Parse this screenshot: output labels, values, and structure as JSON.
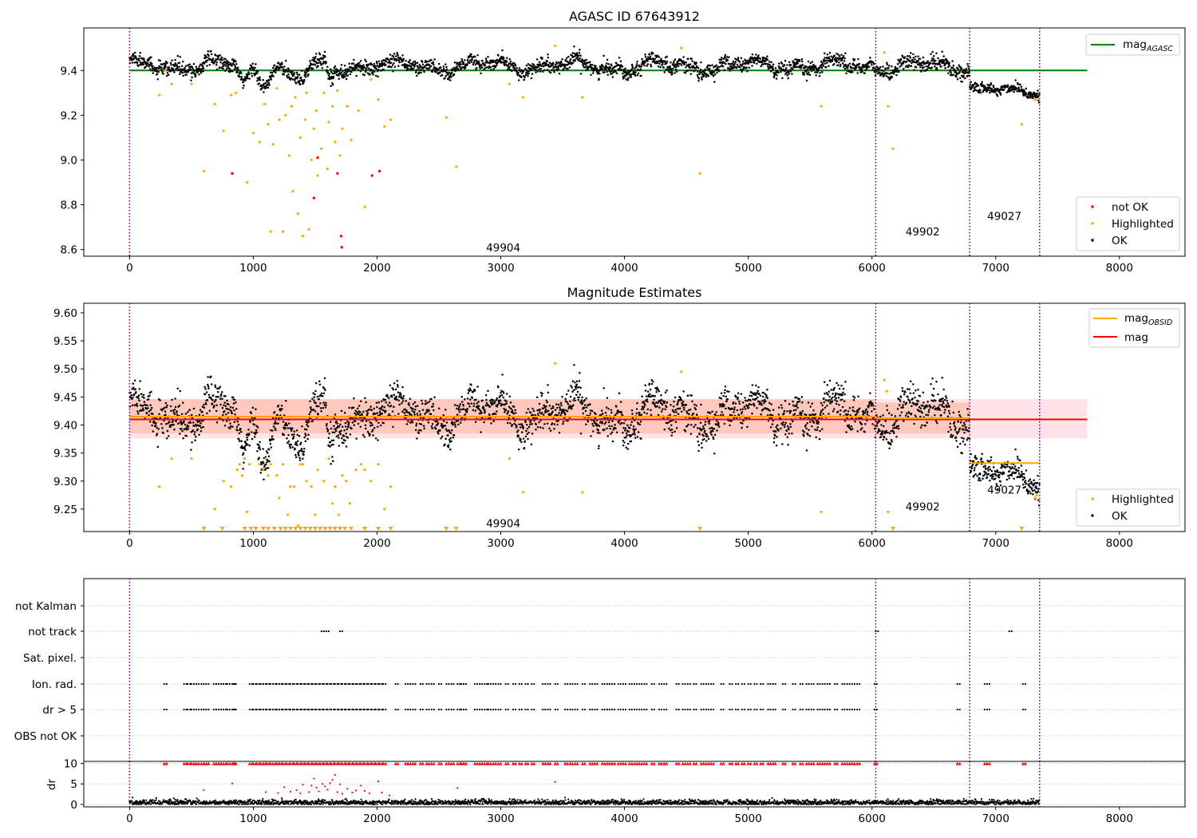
{
  "colors": {
    "ok": "#000000",
    "highlighted": "#ffa500",
    "not_ok": "#ff0000",
    "agasc_line": "#008000",
    "mag_line": "#ff0000",
    "obsid_line": "#ffa500",
    "obs_boundary": "#800080",
    "band_red": "#ffc0cb",
    "band_orange": "#ffa07a",
    "grid": "#b0b0b0"
  },
  "chart_data": [
    {
      "id": "top",
      "type": "scatter",
      "title": "AGASC ID 67643912",
      "xlim": [
        -370,
        8530
      ],
      "ylim": [
        8.57,
        9.59
      ],
      "xticks": [
        0,
        1000,
        2000,
        3000,
        4000,
        5000,
        6000,
        7000,
        8000
      ],
      "yticks": [
        8.6,
        8.8,
        9.0,
        9.2,
        9.4
      ],
      "ytick_labels": [
        "8.6",
        "8.8",
        "9.0",
        "9.2",
        "9.4"
      ],
      "obs_boundaries": [
        0,
        6030,
        6790,
        7355
      ],
      "obsid_labels": [
        {
          "text": "49904",
          "x": 3020,
          "y": 8.61
        },
        {
          "text": "49902",
          "x": 6410,
          "y": 8.68
        },
        {
          "text": "49027",
          "x": 7070,
          "y": 8.75
        }
      ],
      "hlines": [
        {
          "name": "mag_AGASC",
          "y": 9.4,
          "x0": 0,
          "x1": 7740,
          "color": "agasc_line"
        }
      ],
      "segments": [
        {
          "x0": 0,
          "x1": 6790,
          "mean": 9.42,
          "wiggle": 0.025,
          "noise": 0.016
        },
        {
          "x0": 6790,
          "x1": 7355,
          "mean": 9.33,
          "wiggle": 0.015,
          "noise": 0.012,
          "trend": -0.04
        }
      ],
      "dips": [
        {
          "x0": 850,
          "x1": 1000,
          "depth": 0.07
        },
        {
          "x0": 1020,
          "x1": 1150,
          "depth": 0.07
        },
        {
          "x0": 1200,
          "x1": 1500,
          "depth": 0.06
        },
        {
          "x0": 1580,
          "x1": 1660,
          "depth": 0.05
        }
      ],
      "highlighted": [
        [
          240,
          9.29
        ],
        [
          290,
          9.4
        ],
        [
          340,
          9.34
        ],
        [
          500,
          9.34
        ],
        [
          600,
          8.95
        ],
        [
          690,
          9.25
        ],
        [
          760,
          9.13
        ],
        [
          820,
          9.29
        ],
        [
          860,
          9.3
        ],
        [
          950,
          8.9
        ],
        [
          1000,
          9.12
        ],
        [
          1050,
          9.08
        ],
        [
          1090,
          9.25
        ],
        [
          1120,
          9.16
        ],
        [
          1140,
          8.68
        ],
        [
          1160,
          9.07
        ],
        [
          1190,
          9.32
        ],
        [
          1210,
          9.18
        ],
        [
          1240,
          8.68
        ],
        [
          1260,
          9.2
        ],
        [
          1290,
          9.02
        ],
        [
          1310,
          9.24
        ],
        [
          1320,
          8.86
        ],
        [
          1340,
          9.28
        ],
        [
          1360,
          8.76
        ],
        [
          1380,
          9.1
        ],
        [
          1400,
          8.66
        ],
        [
          1420,
          9.18
        ],
        [
          1430,
          9.3
        ],
        [
          1450,
          8.69
        ],
        [
          1470,
          9.0
        ],
        [
          1490,
          9.14
        ],
        [
          1510,
          9.22
        ],
        [
          1520,
          8.93
        ],
        [
          1550,
          9.05
        ],
        [
          1570,
          9.3
        ],
        [
          1600,
          8.96
        ],
        [
          1610,
          9.17
        ],
        [
          1640,
          9.24
        ],
        [
          1660,
          9.08
        ],
        [
          1680,
          9.31
        ],
        [
          1700,
          9.02
        ],
        [
          1720,
          9.14
        ],
        [
          1760,
          9.24
        ],
        [
          1790,
          9.09
        ],
        [
          1850,
          9.22
        ],
        [
          1900,
          8.79
        ],
        [
          1950,
          9.36
        ],
        [
          2010,
          9.27
        ],
        [
          2060,
          9.15
        ],
        [
          2110,
          9.18
        ],
        [
          2560,
          9.19
        ],
        [
          2640,
          8.97
        ],
        [
          3070,
          9.34
        ],
        [
          3180,
          9.28
        ],
        [
          3440,
          9.51
        ],
        [
          3660,
          9.28
        ],
        [
          4460,
          9.5
        ],
        [
          4610,
          8.94
        ],
        [
          5590,
          9.24
        ],
        [
          6100,
          9.48
        ],
        [
          6130,
          9.24
        ],
        [
          6170,
          9.05
        ],
        [
          7210,
          9.16
        ],
        [
          7320,
          9.27
        ]
      ],
      "not_ok": [
        [
          830,
          8.94
        ],
        [
          1490,
          8.83
        ],
        [
          1520,
          9.01
        ],
        [
          1680,
          8.94
        ],
        [
          1710,
          8.66
        ],
        [
          1715,
          8.61
        ],
        [
          1960,
          8.93
        ],
        [
          2020,
          8.95
        ]
      ],
      "legend": {
        "position": "lower-right",
        "items": [
          "not OK",
          "Highlighted",
          "OK"
        ]
      },
      "legend_line": {
        "position": "upper-right",
        "base": "mag",
        "sub": "AGASC"
      }
    },
    {
      "id": "middle",
      "type": "scatter",
      "title": "Magnitude Estimates",
      "xlim": [
        -370,
        8530
      ],
      "ylim": [
        9.21,
        9.617
      ],
      "xticks": [
        0,
        1000,
        2000,
        3000,
        4000,
        5000,
        6000,
        7000,
        8000
      ],
      "yticks": [
        9.25,
        9.3,
        9.35,
        9.4,
        9.45,
        9.5,
        9.55,
        9.6
      ],
      "ytick_labels": [
        "9.25",
        "9.30",
        "9.35",
        "9.40",
        "9.45",
        "9.50",
        "9.55",
        "9.60"
      ],
      "obs_boundaries": [
        0,
        6030,
        6790,
        7355
      ],
      "obsid_labels": [
        {
          "text": "49904",
          "x": 3020,
          "y": 9.225
        },
        {
          "text": "49902",
          "x": 6410,
          "y": 9.255
        },
        {
          "text": "49027",
          "x": 7070,
          "y": 9.285
        }
      ],
      "mag": {
        "value": 9.41,
        "x0": 0,
        "x1": 7740,
        "band": [
          9.376,
          9.446
        ]
      },
      "obsid_means": [
        {
          "x0": 0,
          "x1": 6030,
          "value": 9.415,
          "band": [
            9.385,
            9.446
          ]
        },
        {
          "x0": 6030,
          "x1": 6790,
          "value": 9.412,
          "band": [
            9.385,
            9.44
          ]
        },
        {
          "x0": 6790,
          "x1": 7355,
          "value": 9.332
        }
      ],
      "segments": [
        {
          "x0": 0,
          "x1": 6790,
          "mean": 9.42,
          "wiggle": 0.025,
          "noise": 0.016
        },
        {
          "x0": 6790,
          "x1": 7355,
          "mean": 9.33,
          "wiggle": 0.015,
          "noise": 0.012,
          "trend": -0.04
        }
      ],
      "dips": [
        {
          "x0": 850,
          "x1": 1000,
          "depth": 0.07
        },
        {
          "x0": 1020,
          "x1": 1150,
          "depth": 0.07
        },
        {
          "x0": 1200,
          "x1": 1500,
          "depth": 0.06
        },
        {
          "x0": 1580,
          "x1": 1660,
          "depth": 0.05
        }
      ],
      "highlighted": [
        [
          240,
          9.29
        ],
        [
          340,
          9.34
        ],
        [
          500,
          9.34
        ],
        [
          690,
          9.25
        ],
        [
          760,
          9.3
        ],
        [
          820,
          9.29
        ],
        [
          870,
          9.32
        ],
        [
          890,
          9.33
        ],
        [
          910,
          9.31
        ],
        [
          930,
          9.34
        ],
        [
          950,
          9.245
        ],
        [
          970,
          9.33
        ],
        [
          1050,
          9.33
        ],
        [
          1080,
          9.32
        ],
        [
          1100,
          9.34
        ],
        [
          1120,
          9.31
        ],
        [
          1140,
          9.33
        ],
        [
          1190,
          9.31
        ],
        [
          1210,
          9.27
        ],
        [
          1240,
          9.33
        ],
        [
          1280,
          9.24
        ],
        [
          1300,
          9.29
        ],
        [
          1330,
          9.29
        ],
        [
          1360,
          9.22
        ],
        [
          1380,
          9.33
        ],
        [
          1400,
          9.33
        ],
        [
          1430,
          9.3
        ],
        [
          1470,
          9.29
        ],
        [
          1500,
          9.24
        ],
        [
          1520,
          9.32
        ],
        [
          1570,
          9.3
        ],
        [
          1610,
          9.34
        ],
        [
          1640,
          9.26
        ],
        [
          1660,
          9.29
        ],
        [
          1690,
          9.24
        ],
        [
          1720,
          9.31
        ],
        [
          1750,
          9.3
        ],
        [
          1780,
          9.26
        ],
        [
          1830,
          9.32
        ],
        [
          1870,
          9.33
        ],
        [
          1900,
          9.32
        ],
        [
          1950,
          9.3
        ],
        [
          2010,
          9.33
        ],
        [
          2060,
          9.25
        ],
        [
          2110,
          9.29
        ],
        [
          3070,
          9.34
        ],
        [
          3180,
          9.28
        ],
        [
          3440,
          9.51
        ],
        [
          3660,
          9.28
        ],
        [
          4460,
          9.495
        ],
        [
          5590,
          9.245
        ],
        [
          6100,
          9.48
        ],
        [
          6120,
          9.46
        ],
        [
          6130,
          9.245
        ],
        [
          7320,
          9.27
        ],
        [
          7330,
          9.275
        ]
      ],
      "floor_x": [
        600,
        750,
        930,
        980,
        1020,
        1080,
        1120,
        1170,
        1220,
        1260,
        1300,
        1340,
        1380,
        1420,
        1460,
        1500,
        1540,
        1580,
        1620,
        1660,
        1700,
        1740,
        1790,
        1900,
        2010,
        2110,
        2560,
        2640,
        4610,
        6170,
        7210
      ],
      "legend": {
        "position": "lower-right",
        "items": [
          "Highlighted",
          "OK"
        ]
      },
      "legend_lines": {
        "position": "upper-right",
        "items": [
          {
            "base": "mag",
            "sub": "OBSID",
            "color": "obsid_line"
          },
          {
            "base": "mag",
            "sub": "",
            "color": "mag_line"
          }
        ]
      }
    },
    {
      "id": "flags",
      "type": "scatter",
      "xlim": [
        -370,
        8530
      ],
      "categories": [
        "not Kalman",
        "not track",
        "Sat. pixel.",
        "Ion. rad.",
        "dr > 5",
        "OBS not OK"
      ],
      "obs_boundaries": [
        0,
        6030,
        6790,
        7355
      ],
      "not_track": [
        1550,
        1570,
        1590,
        1700,
        6030,
        7110
      ],
      "ion_rad": [
        280,
        440,
        470,
        500,
        520,
        540,
        580,
        600,
        620,
        680,
        700,
        720,
        740,
        760,
        790,
        830,
        840,
        970,
        1000,
        1030,
        1060,
        1080,
        1110,
        1140,
        1160,
        1190,
        1210,
        1240,
        1270,
        1300,
        1330,
        1360,
        1390,
        1420,
        1450,
        1480,
        1510,
        1540,
        1570,
        1600,
        1630,
        1660,
        1690,
        1720,
        1750,
        1780,
        1810,
        1840,
        1870,
        1900,
        1930,
        1960,
        1990,
        2020,
        2050,
        2150,
        2230,
        2250,
        2290,
        2350,
        2400,
        2440,
        2500,
        2560,
        2600,
        2650,
        2680,
        2700,
        2790,
        2830,
        2870,
        2900,
        2940,
        2980,
        3040,
        3100,
        3150,
        3200,
        3250,
        3340,
        3380,
        3440,
        3520,
        3560,
        3600,
        3660,
        3720,
        3760,
        3820,
        3860,
        3900,
        3950,
        3990,
        4040,
        4080,
        4120,
        4160,
        4220,
        4280,
        4320,
        4420,
        4470,
        4510,
        4560,
        4620,
        4660,
        4700,
        4780,
        4850,
        4900,
        4950,
        5000,
        5050,
        5100,
        5160,
        5200,
        5280,
        5360,
        5420,
        5470,
        5510,
        5560,
        5600,
        5640,
        5700,
        5760,
        5800,
        5840,
        5880,
        6020,
        6690,
        6910,
        6930,
        7220
      ],
      "dr_gt5": [
        280,
        440,
        470,
        500,
        520,
        540,
        580,
        600,
        620,
        680,
        700,
        720,
        740,
        760,
        790,
        830,
        840,
        970,
        1000,
        1030,
        1060,
        1080,
        1110,
        1140,
        1160,
        1190,
        1210,
        1240,
        1270,
        1300,
        1330,
        1360,
        1390,
        1420,
        1450,
        1480,
        1510,
        1540,
        1570,
        1600,
        1630,
        1660,
        1690,
        1720,
        1750,
        1780,
        1810,
        1840,
        1870,
        1900,
        1930,
        1960,
        1990,
        2020,
        2050,
        2150,
        2230,
        2250,
        2290,
        2350,
        2400,
        2440,
        2500,
        2560,
        2600,
        2650,
        2680,
        2700,
        2790,
        2830,
        2870,
        2900,
        2940,
        2980,
        3040,
        3100,
        3150,
        3200,
        3250,
        3340,
        3380,
        3440,
        3520,
        3560,
        3600,
        3660,
        3720,
        3760,
        3820,
        3860,
        3900,
        3950,
        3990,
        4040,
        4080,
        4120,
        4160,
        4220,
        4280,
        4320,
        4420,
        4470,
        4510,
        4560,
        4620,
        4660,
        4700,
        4780,
        4850,
        4900,
        4950,
        5000,
        5050,
        5100,
        5160,
        5200,
        5280,
        5360,
        5420,
        5470,
        5510,
        5560,
        5600,
        5640,
        5700,
        5760,
        5800,
        5840,
        5880,
        6020,
        6690,
        6910,
        6930,
        7220
      ]
    },
    {
      "id": "dr",
      "type": "scatter",
      "ylabel": "dr",
      "xlim": [
        -370,
        8530
      ],
      "ylim": [
        -0.6,
        10.5
      ],
      "xticks": [
        0,
        1000,
        2000,
        3000,
        4000,
        5000,
        6000,
        7000,
        8000
      ],
      "yticks": [
        0,
        5,
        10
      ],
      "ytick_labels": [
        "0",
        "5",
        "10"
      ],
      "obs_boundaries": [
        0,
        6030,
        6790,
        7355
      ],
      "dr_points": [
        [
          600,
          3.5
        ],
        [
          830,
          5.1
        ],
        [
          1100,
          3.0
        ],
        [
          1200,
          2.8
        ],
        [
          1250,
          4.2
        ],
        [
          1300,
          3.1
        ],
        [
          1350,
          3.5
        ],
        [
          1380,
          2.7
        ],
        [
          1400,
          4.8
        ],
        [
          1450,
          3.0
        ],
        [
          1470,
          4.6
        ],
        [
          1490,
          6.3
        ],
        [
          1510,
          4.1
        ],
        [
          1530,
          3.2
        ],
        [
          1560,
          5.0
        ],
        [
          1580,
          4.4
        ],
        [
          1600,
          3.6
        ],
        [
          1620,
          5.2
        ],
        [
          1640,
          6.0
        ],
        [
          1660,
          7.2
        ],
        [
          1680,
          3.0
        ],
        [
          1700,
          4.9
        ],
        [
          1720,
          2.6
        ],
        [
          1760,
          3.8
        ],
        [
          1800,
          2.9
        ],
        [
          1830,
          3.4
        ],
        [
          1870,
          4.6
        ],
        [
          1900,
          3.3
        ],
        [
          1940,
          2.7
        ],
        [
          2010,
          5.6
        ],
        [
          2040,
          2.9
        ],
        [
          2100,
          2.2
        ],
        [
          2650,
          4.0
        ],
        [
          3440,
          5.5
        ]
      ]
    }
  ]
}
